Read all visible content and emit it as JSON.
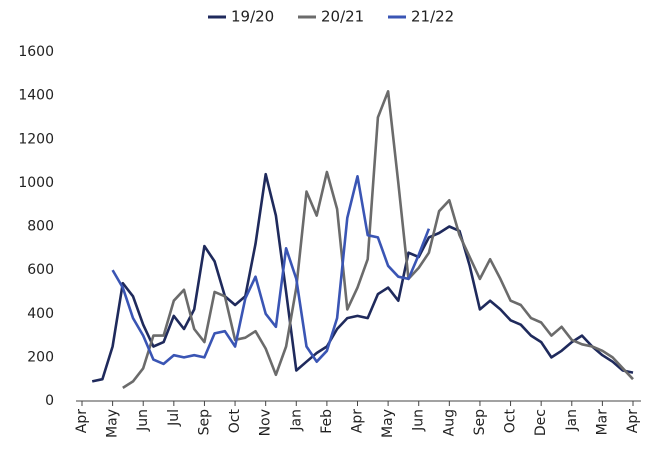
{
  "chart_data": {
    "type": "line",
    "categories": [
      "Apr",
      null,
      null,
      "May",
      null,
      null,
      "Jun",
      null,
      null,
      "Jul",
      null,
      null,
      "Sep",
      null,
      null,
      "Oct",
      null,
      null,
      "Nov",
      null,
      null,
      "Jan",
      null,
      null,
      "Feb",
      null,
      null,
      "Apr",
      null,
      null,
      "May",
      null,
      null,
      "Jun",
      null,
      null,
      "Aug",
      null,
      null,
      "Sep",
      null,
      null,
      "Oct",
      null,
      null,
      "Dec",
      null,
      null,
      "Jan",
      null,
      null,
      "Mar",
      null,
      null,
      "Apr"
    ],
    "series": [
      {
        "name": "19/20",
        "color": "#1f2a5c",
        "values": [
          null,
          90,
          100,
          250,
          540,
          480,
          350,
          250,
          270,
          390,
          330,
          420,
          710,
          640,
          480,
          440,
          480,
          720,
          1040,
          850,
          500,
          140,
          180,
          220,
          250,
          330,
          380,
          390,
          380,
          490,
          520,
          460,
          680,
          660,
          750,
          770,
          800,
          780,
          620,
          420,
          460,
          420,
          370,
          350,
          300,
          270,
          200,
          230,
          270,
          300,
          250,
          210,
          180,
          140,
          130
        ]
      },
      {
        "name": "20/21",
        "color": "#6b6b6b",
        "values": [
          null,
          null,
          null,
          null,
          60,
          90,
          150,
          300,
          300,
          460,
          510,
          330,
          270,
          500,
          480,
          280,
          290,
          320,
          240,
          120,
          250,
          520,
          960,
          850,
          1050,
          880,
          420,
          520,
          650,
          1300,
          1420,
          1000,
          560,
          610,
          680,
          870,
          920,
          760,
          660,
          560,
          650,
          560,
          460,
          440,
          380,
          360,
          300,
          340,
          280,
          260,
          250,
          230,
          200,
          150,
          100
        ]
      },
      {
        "name": "21/22",
        "color": "#3a55b4",
        "values": [
          null,
          null,
          null,
          600,
          520,
          380,
          300,
          190,
          170,
          210,
          200,
          210,
          200,
          310,
          320,
          250,
          470,
          570,
          400,
          340,
          700,
          560,
          250,
          180,
          230,
          380,
          840,
          1030,
          760,
          750,
          620,
          570,
          560,
          670,
          790,
          null,
          null,
          null,
          null,
          null,
          null,
          null,
          null,
          null,
          null,
          null,
          null,
          null,
          null,
          null,
          null,
          null,
          null,
          null,
          null
        ]
      }
    ],
    "ylim": [
      0,
      1600
    ],
    "yticks": [
      0,
      200,
      400,
      600,
      800,
      1000,
      1200,
      1400,
      1600
    ],
    "legend": "top"
  }
}
